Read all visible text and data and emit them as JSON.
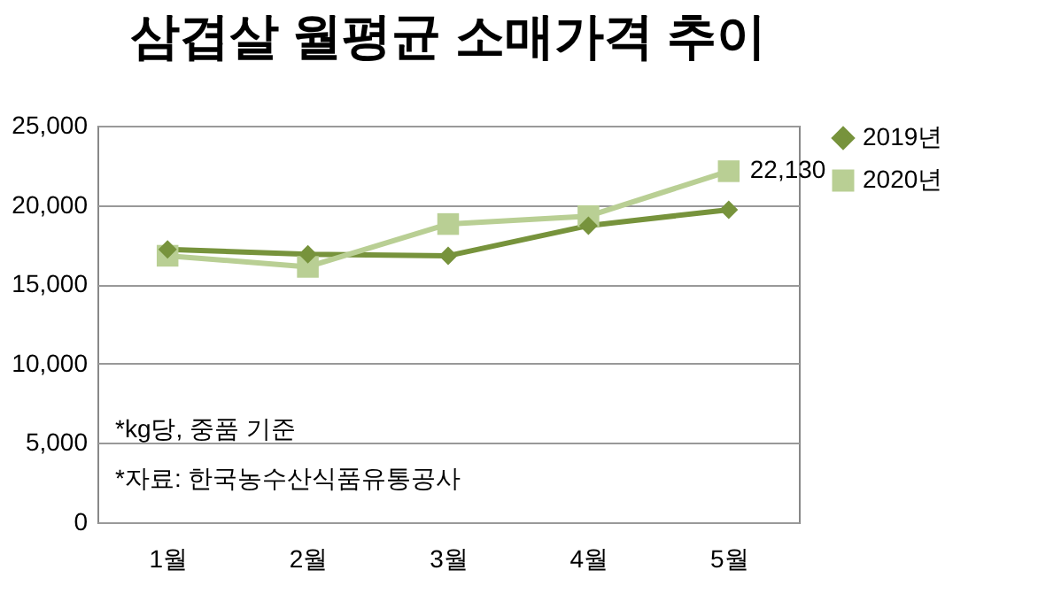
{
  "chart_data": {
    "type": "line",
    "title": "삼겹살 월평균 소매가격 추이",
    "categories": [
      "1월",
      "2월",
      "3월",
      "4월",
      "5월"
    ],
    "series": [
      {
        "name": "2019년",
        "color": "#77933c",
        "marker": "diamond",
        "values": [
          17200,
          16900,
          16800,
          18700,
          19700
        ]
      },
      {
        "name": "2020년",
        "color": "#b9cf94",
        "marker": "square",
        "values": [
          16800,
          16100,
          18800,
          19300,
          22130
        ],
        "value_labels": [
          null,
          null,
          null,
          null,
          "22,130"
        ]
      }
    ],
    "ylim": [
      0,
      25000
    ],
    "yticks": [
      {
        "value": 0,
        "label": "0"
      },
      {
        "value": 5000,
        "label": "5,000"
      },
      {
        "value": 10000,
        "label": "10,000"
      },
      {
        "value": 15000,
        "label": "15,000"
      },
      {
        "value": 20000,
        "label": "20,000"
      },
      {
        "value": 25000,
        "label": "25,000"
      }
    ],
    "grid": "y",
    "legend": "right",
    "annotations": [
      "*kg당, 중품 기준",
      "*자료: 한국농수산식품유통공사"
    ]
  }
}
